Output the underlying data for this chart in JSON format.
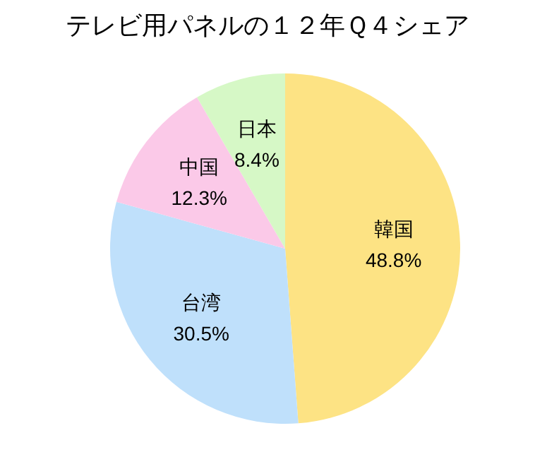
{
  "chart_data": {
    "type": "pie",
    "title": "テレビ用パネルの１２年Ｑ４シェア",
    "categories": [
      "韓国",
      "台湾",
      "中国",
      "日本"
    ],
    "values": [
      48.8,
      30.5,
      12.3,
      8.4
    ],
    "value_labels": [
      "48.8%",
      "30.5%",
      "12.3%",
      "8.4%"
    ],
    "colors": [
      "#fde384",
      "#bfe0fb",
      "#fbc9e8",
      "#d6f8c6"
    ],
    "legend": false
  }
}
